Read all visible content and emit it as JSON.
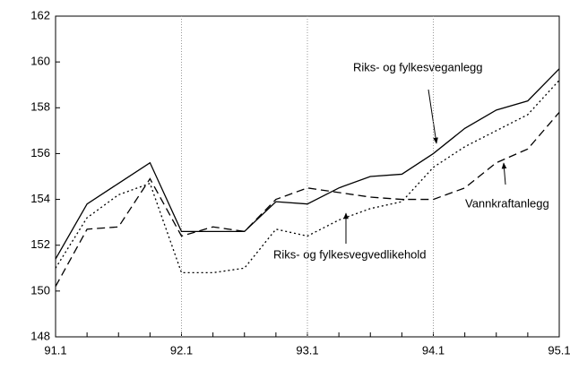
{
  "chart_data": {
    "type": "line",
    "categories": [
      "91.1",
      null,
      null,
      null,
      "92.1",
      null,
      null,
      null,
      "93.1",
      null,
      null,
      null,
      "94.1",
      null,
      null,
      null,
      "95.1"
    ],
    "series": [
      {
        "name": "Riks- og fylkesveganlegg",
        "color": "#000000",
        "dash": "solid",
        "values": [
          151.4,
          153.8,
          154.7,
          155.6,
          152.6,
          152.6,
          152.6,
          153.9,
          153.8,
          154.5,
          155.0,
          155.1,
          156.0,
          157.1,
          157.9,
          158.3,
          159.7
        ]
      },
      {
        "name": "Riks- og fylkesvegvedlikehold",
        "color": "#000000",
        "dash": "dotted",
        "values": [
          151.0,
          153.2,
          154.2,
          154.7,
          150.8,
          150.8,
          151.0,
          152.7,
          152.4,
          153.1,
          153.6,
          153.9,
          155.4,
          156.3,
          157.0,
          157.7,
          159.2
        ]
      },
      {
        "name": "Vannkraftanlegg",
        "color": "#000000",
        "dash": "dashed",
        "values": [
          150.2,
          152.7,
          152.8,
          154.9,
          152.4,
          152.8,
          152.6,
          154.0,
          154.5,
          154.3,
          154.1,
          154.0,
          154.0,
          154.5,
          155.6,
          156.2,
          157.8
        ]
      }
    ],
    "ylim": [
      148,
      162
    ],
    "yticks": [
      148,
      150,
      152,
      154,
      156,
      158,
      160,
      162
    ],
    "grid": "x"
  }
}
